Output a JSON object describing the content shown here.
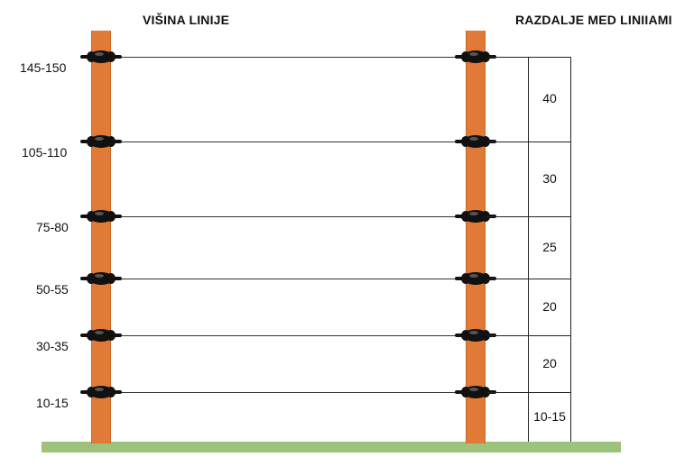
{
  "headers": {
    "line_height": "VIŠINA LINIJE",
    "line_spacing": "RAZDALJE MED LINIIAMI"
  },
  "heights": [
    "145-150",
    "105-110",
    "75-80",
    "50-55",
    "30-35",
    "10-15"
  ],
  "spacings": [
    "40",
    "30",
    "25",
    "20",
    "20",
    "10-15"
  ],
  "colors": {
    "post": "#e07a36",
    "ground": "#9dc37a",
    "insulator": "#111111",
    "wire": "#333333"
  }
}
